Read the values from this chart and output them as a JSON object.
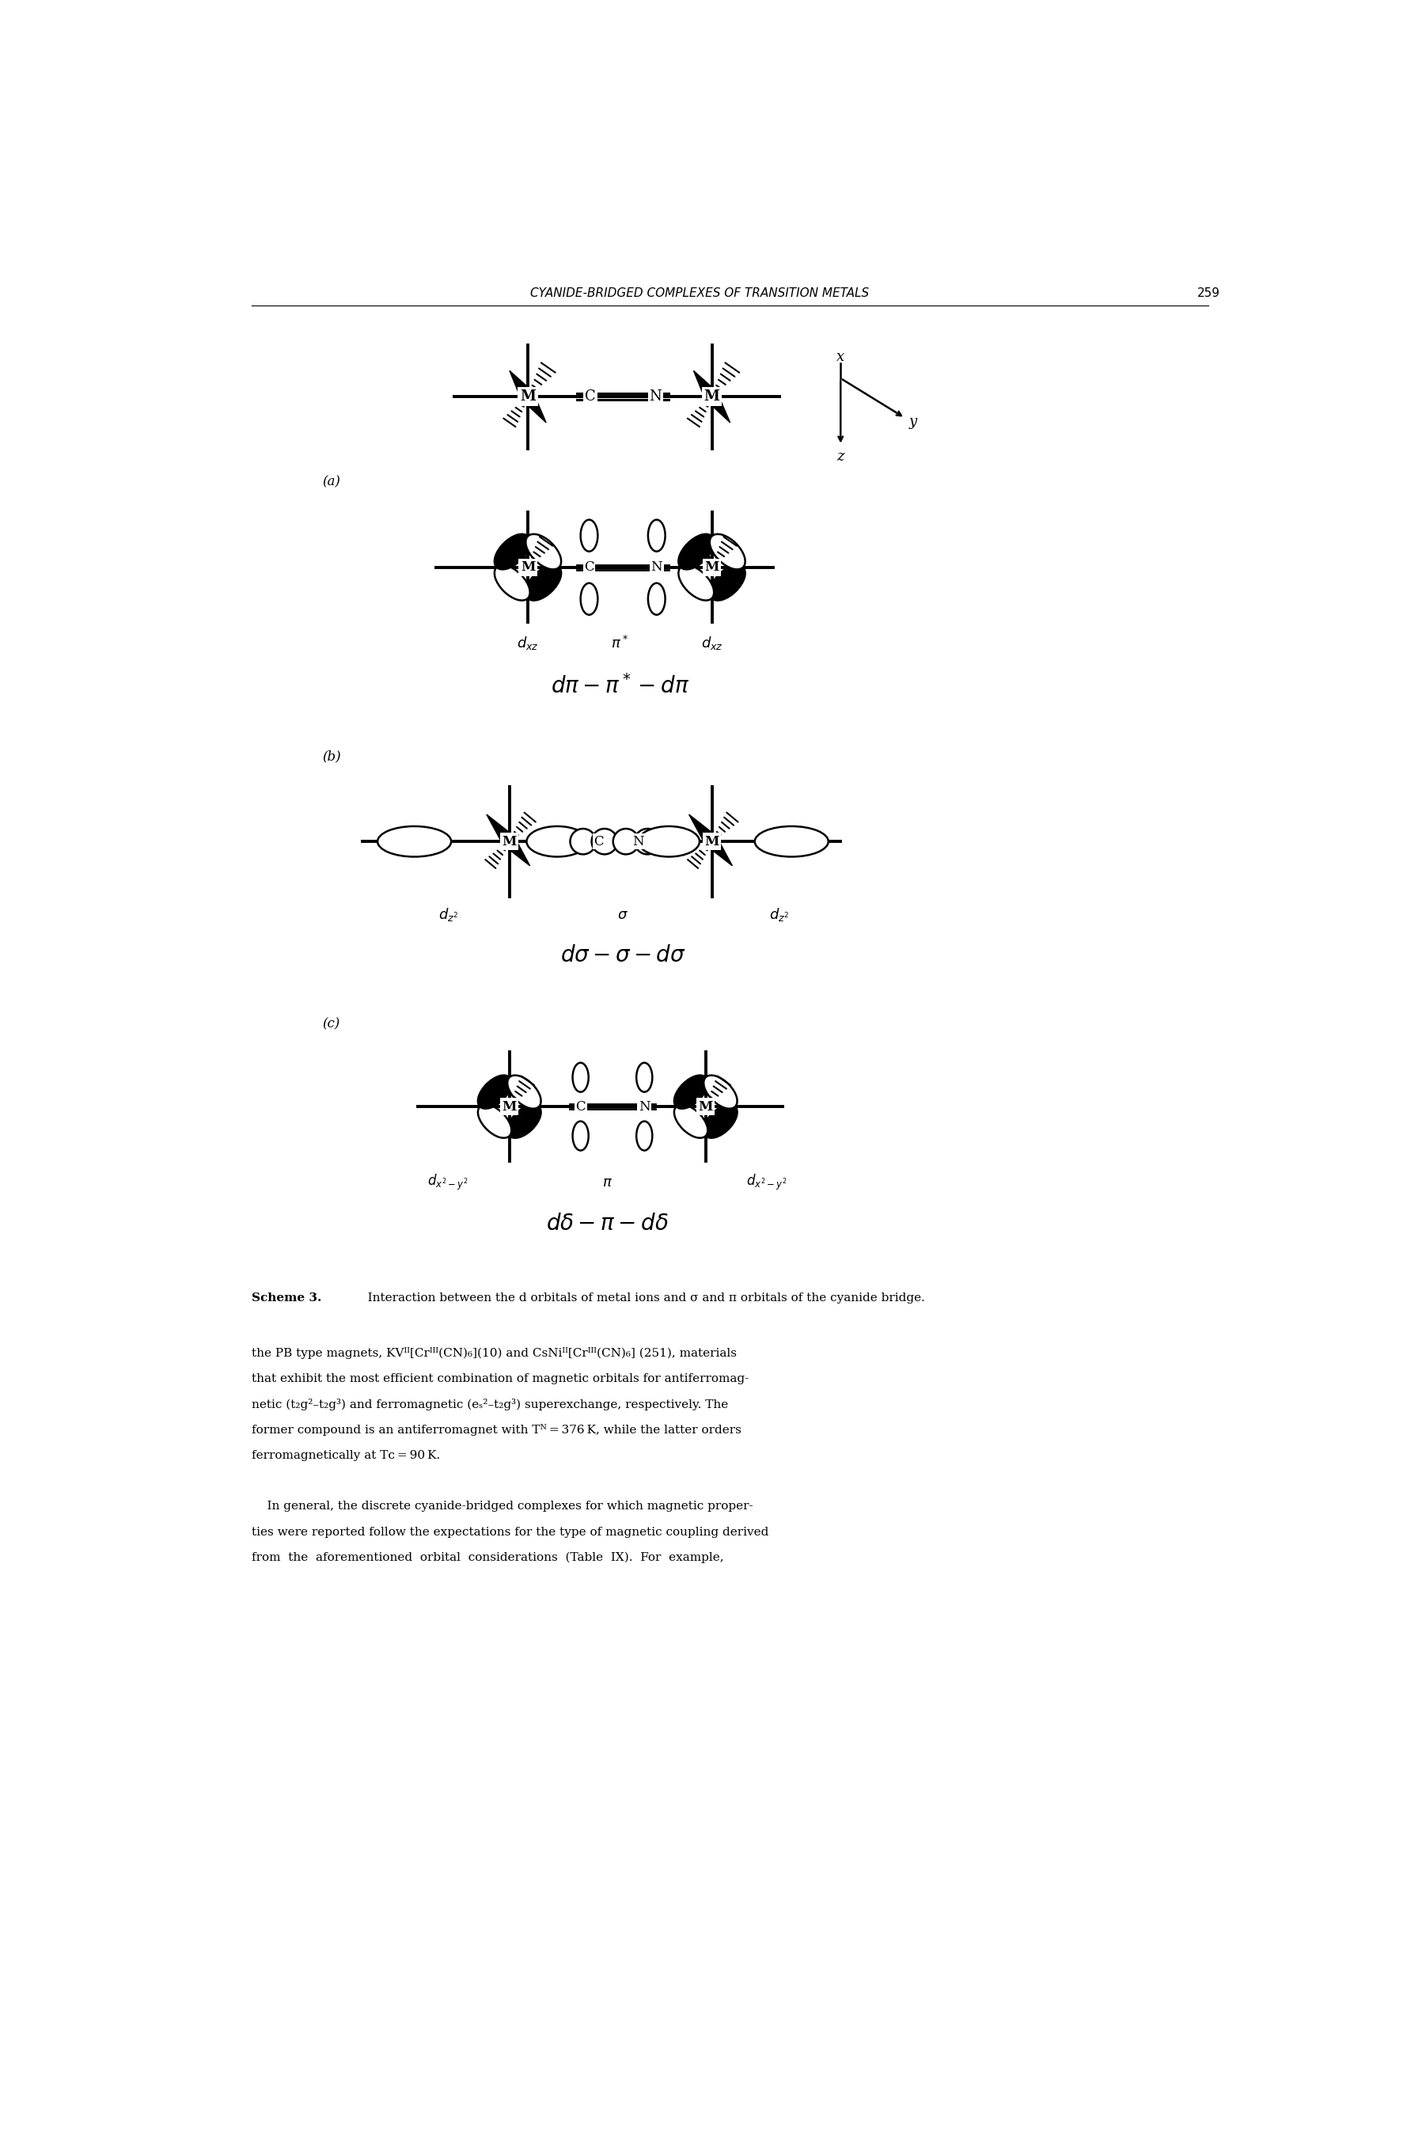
{
  "page_header": "CYANIDE-BRIDGED COMPLEXES OF TRANSITION METALS",
  "page_number": "259",
  "scheme_caption_bold": "Scheme 3.",
  "scheme_caption_text": "   Interaction between the d orbitals of metal ions and σ and π orbitals of the cyanide bridge.",
  "panel_a_label": "(a)",
  "panel_b_label": "(b)",
  "panel_c_label": "(c)",
  "bg_color": "#ffffff",
  "fg_color": "#000000",
  "body_text_line1": "the PB type magnets, KV",
  "body_text_line2": "that exhibit the most efficient combination of magnetic orbitals for antiferromag-",
  "body_text_line3": "netic (t",
  "body_text_line4": "former compound is an antiferromagnet with T",
  "body_text_line5": "ferromagnetically at T",
  "body_text_line6": "    In general, the discrete cyanide-bridged complexes for which magnetic proper-",
  "body_text_line7": "ties were reported follow the expectations for the type of magnetic coupling derived",
  "body_text_line8": "from  the  aforementioned  orbital  considerations  (Table  IX).  For  example,"
}
